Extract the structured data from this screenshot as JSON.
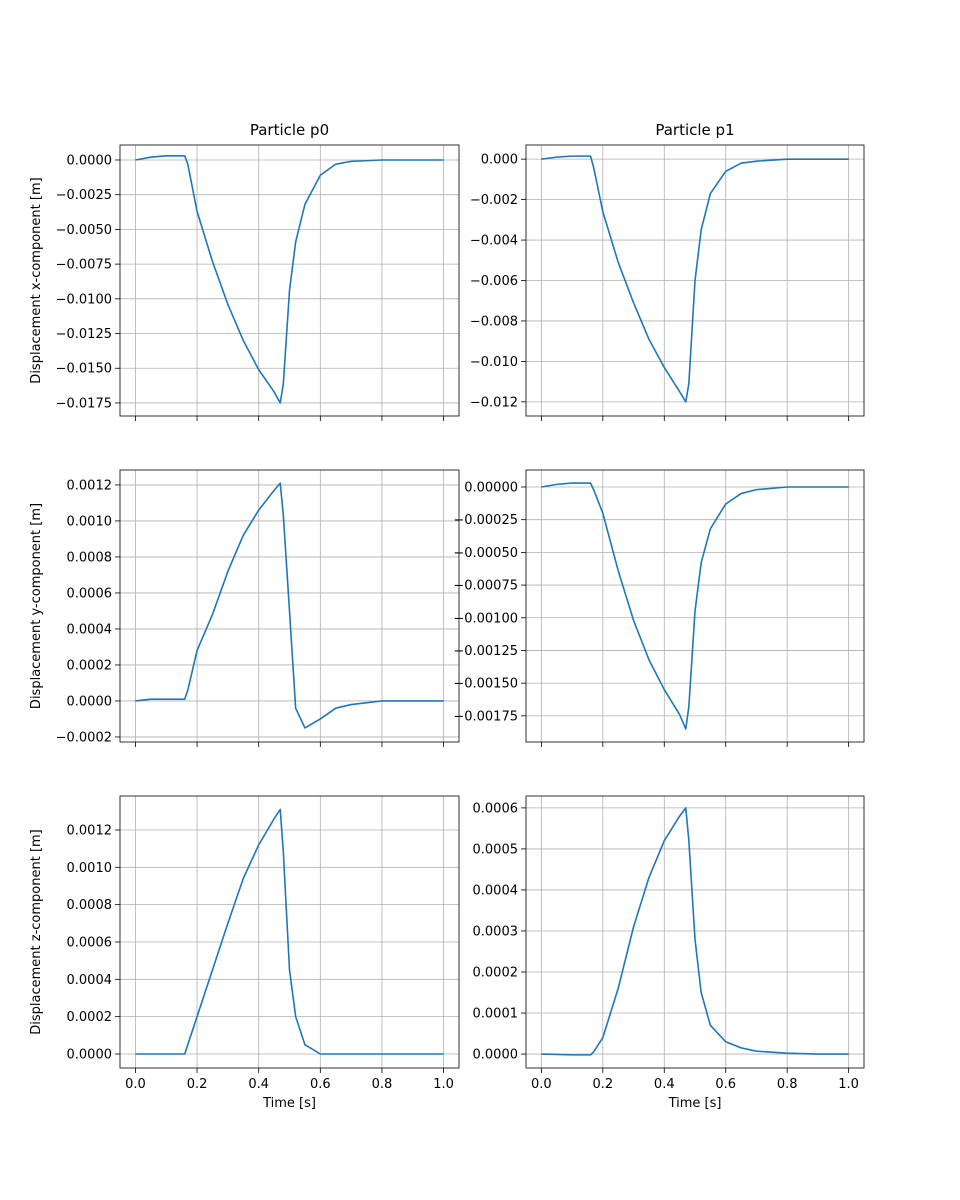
{
  "chart_data": [
    {
      "type": "line",
      "title": "Particle p0",
      "ylabel": "Displacement x-component [m]",
      "color": "#1f77b4",
      "grid": true,
      "xtick_labels": false,
      "x": [
        0,
        0.05,
        0.1,
        0.16,
        0.17,
        0.2,
        0.25,
        0.3,
        0.35,
        0.4,
        0.45,
        0.47,
        0.48,
        0.5,
        0.52,
        0.55,
        0.6,
        0.65,
        0.7,
        0.8,
        0.9,
        1.0
      ],
      "values": [
        0,
        0.0002,
        0.0003,
        0.0003,
        -0.0003,
        -0.0037,
        -0.0073,
        -0.0104,
        -0.013,
        -0.0151,
        -0.0167,
        -0.0175,
        -0.0161,
        -0.0094,
        -0.0059,
        -0.0032,
        -0.0011,
        -0.0003,
        -0.0001,
        0,
        0,
        0
      ],
      "xlim": [
        -0.05,
        1.05
      ],
      "xticks": [
        0,
        0.2,
        0.4,
        0.6,
        0.8,
        1
      ],
      "ylim": [
        -0.01844,
        0.00108
      ],
      "yticks": [
        {
          "value": 0,
          "label": "0.0000"
        },
        {
          "value": -0.0025,
          "label": "−0.0025"
        },
        {
          "value": -0.005,
          "label": "−0.0050"
        },
        {
          "value": -0.0075,
          "label": "−0.0075"
        },
        {
          "value": -0.01,
          "label": "−0.0100"
        },
        {
          "value": -0.0125,
          "label": "−0.0125"
        },
        {
          "value": -0.015,
          "label": "−0.0150"
        },
        {
          "value": -0.0175,
          "label": "−0.0175"
        }
      ]
    },
    {
      "type": "line",
      "title": "Particle p1",
      "color": "#1f77b4",
      "grid": true,
      "xtick_labels": false,
      "x": [
        0,
        0.05,
        0.1,
        0.16,
        0.17,
        0.2,
        0.25,
        0.3,
        0.35,
        0.4,
        0.45,
        0.47,
        0.48,
        0.5,
        0.52,
        0.55,
        0.6,
        0.65,
        0.7,
        0.8,
        0.9,
        1.0
      ],
      "values": [
        0,
        0.0001,
        0.00015,
        0.00015,
        -0.0004,
        -0.0026,
        -0.0051,
        -0.0071,
        -0.0089,
        -0.0103,
        -0.0115,
        -0.012,
        -0.0111,
        -0.006,
        -0.0035,
        -0.0017,
        -0.0006,
        -0.0002,
        -0.0001,
        0,
        0,
        0
      ],
      "xlim": [
        -0.05,
        1.05
      ],
      "xticks": [
        0,
        0.2,
        0.4,
        0.6,
        0.8,
        1
      ],
      "ylim": [
        -0.0127,
        0.0007
      ],
      "yticks": [
        {
          "value": 0,
          "label": "0.000"
        },
        {
          "value": -0.002,
          "label": "−0.002"
        },
        {
          "value": -0.004,
          "label": "−0.004"
        },
        {
          "value": -0.006,
          "label": "−0.006"
        },
        {
          "value": -0.008,
          "label": "−0.008"
        },
        {
          "value": -0.01,
          "label": "−0.010"
        },
        {
          "value": -0.012,
          "label": "−0.012"
        }
      ]
    },
    {
      "type": "line",
      "ylabel": "Displacement y-component [m]",
      "color": "#1f77b4",
      "grid": true,
      "xtick_labels": false,
      "x": [
        0,
        0.05,
        0.1,
        0.16,
        0.17,
        0.2,
        0.25,
        0.3,
        0.35,
        0.4,
        0.45,
        0.47,
        0.48,
        0.5,
        0.52,
        0.55,
        0.6,
        0.65,
        0.7,
        0.8,
        0.9,
        1.0
      ],
      "values": [
        0,
        1e-05,
        1e-05,
        1e-05,
        6e-05,
        0.00028,
        0.00048,
        0.00072,
        0.00092,
        0.00106,
        0.00117,
        0.00121,
        0.00103,
        0.0005,
        -4e-05,
        -0.00015,
        -0.0001,
        -4e-05,
        -2e-05,
        0,
        0,
        0
      ],
      "xlim": [
        -0.05,
        1.05
      ],
      "xticks": [
        0,
        0.2,
        0.4,
        0.6,
        0.8,
        1
      ],
      "ylim": [
        -0.000228,
        0.001283
      ],
      "yticks": [
        {
          "value": -0.0002,
          "label": "−0.0002"
        },
        {
          "value": 0,
          "label": "0.0000"
        },
        {
          "value": 0.0002,
          "label": "0.0002"
        },
        {
          "value": 0.0004,
          "label": "0.0004"
        },
        {
          "value": 0.0006,
          "label": "0.0006"
        },
        {
          "value": 0.0008,
          "label": "0.0008"
        },
        {
          "value": 0.001,
          "label": "0.0010"
        },
        {
          "value": 0.0012,
          "label": "0.0012"
        }
      ]
    },
    {
      "type": "line",
      "color": "#1f77b4",
      "grid": true,
      "xtick_labels": false,
      "x": [
        0,
        0.05,
        0.1,
        0.16,
        0.17,
        0.2,
        0.25,
        0.3,
        0.35,
        0.4,
        0.45,
        0.47,
        0.48,
        0.5,
        0.52,
        0.55,
        0.6,
        0.65,
        0.7,
        0.8,
        0.9,
        1.0
      ],
      "values": [
        0,
        2e-05,
        3e-05,
        3e-05,
        -2e-05,
        -0.0002,
        -0.00064,
        -0.00102,
        -0.00132,
        -0.00155,
        -0.00174,
        -0.00185,
        -0.00168,
        -0.00095,
        -0.00058,
        -0.00032,
        -0.00013,
        -5e-05,
        -2e-05,
        0,
        0,
        0
      ],
      "xlim": [
        -0.05,
        1.05
      ],
      "xticks": [
        0,
        0.2,
        0.4,
        0.6,
        0.8,
        1
      ],
      "ylim": [
        -0.00195,
        0.00013
      ],
      "yticks": [
        {
          "value": 0,
          "label": "0.00000"
        },
        {
          "value": -0.00025,
          "label": "−0.00025"
        },
        {
          "value": -0.0005,
          "label": "−0.00050"
        },
        {
          "value": -0.00075,
          "label": "−0.00075"
        },
        {
          "value": -0.001,
          "label": "−0.00100"
        },
        {
          "value": -0.00125,
          "label": "−0.00125"
        },
        {
          "value": -0.0015,
          "label": "−0.00150"
        },
        {
          "value": -0.00175,
          "label": "−0.00175"
        }
      ]
    },
    {
      "type": "line",
      "ylabel": "Displacement z-component [m]",
      "xlabel": "Time [s]",
      "color": "#1f77b4",
      "grid": true,
      "xtick_labels": true,
      "x": [
        0,
        0.05,
        0.1,
        0.16,
        0.17,
        0.2,
        0.25,
        0.3,
        0.35,
        0.4,
        0.45,
        0.47,
        0.48,
        0.5,
        0.52,
        0.55,
        0.6,
        0.65,
        0.7,
        0.8,
        0.9,
        1.0
      ],
      "values": [
        0,
        0,
        0,
        0,
        5e-05,
        0.0002,
        0.00045,
        0.0007,
        0.00094,
        0.00112,
        0.00126,
        0.00131,
        0.00108,
        0.00045,
        0.0002,
        5e-05,
        0,
        0,
        0,
        0,
        0,
        0
      ],
      "xlim": [
        -0.05,
        1.05
      ],
      "xticks": [
        {
          "value": 0,
          "label": "0.0"
        },
        0.2,
        0.4,
        0.6,
        0.8,
        {
          "value": 1,
          "label": "1.0"
        }
      ],
      "ylim": [
        -7.5e-05,
        0.001382
      ],
      "yticks": [
        {
          "value": 0,
          "label": "0.0000"
        },
        {
          "value": 0.0002,
          "label": "0.0002"
        },
        {
          "value": 0.0004,
          "label": "0.0004"
        },
        {
          "value": 0.0006,
          "label": "0.0006"
        },
        {
          "value": 0.0008,
          "label": "0.0008"
        },
        {
          "value": 0.001,
          "label": "0.0010"
        },
        {
          "value": 0.0012,
          "label": "0.0012"
        }
      ]
    },
    {
      "type": "line",
      "xlabel": "Time [s]",
      "color": "#1f77b4",
      "grid": true,
      "xtick_labels": true,
      "x": [
        0,
        0.05,
        0.1,
        0.16,
        0.17,
        0.2,
        0.25,
        0.3,
        0.35,
        0.4,
        0.45,
        0.47,
        0.48,
        0.5,
        0.52,
        0.55,
        0.6,
        0.65,
        0.7,
        0.8,
        0.9,
        1.0
      ],
      "values": [
        0,
        -1e-06,
        -2e-06,
        -2e-06,
        5e-06,
        4e-05,
        0.00016,
        0.00031,
        0.00043,
        0.00052,
        0.00058,
        0.0006,
        0.00052,
        0.00028,
        0.00015,
        7e-05,
        3e-05,
        1.5e-05,
        7e-06,
        2e-06,
        0,
        0
      ],
      "xlim": [
        -0.05,
        1.05
      ],
      "xticks": [
        {
          "value": 0,
          "label": "0.0"
        },
        0.2,
        0.4,
        0.6,
        0.8,
        {
          "value": 1,
          "label": "1.0"
        }
      ],
      "ylim": [
        -3.4e-05,
        0.000629
      ],
      "yticks": [
        {
          "value": 0,
          "label": "0.0000"
        },
        {
          "value": 0.0001,
          "label": "0.0001"
        },
        {
          "value": 0.0002,
          "label": "0.0002"
        },
        {
          "value": 0.0003,
          "label": "0.0003"
        },
        {
          "value": 0.0004,
          "label": "0.0004"
        },
        {
          "value": 0.0005,
          "label": "0.0005"
        },
        {
          "value": 0.0006,
          "label": "0.0006"
        }
      ]
    }
  ]
}
